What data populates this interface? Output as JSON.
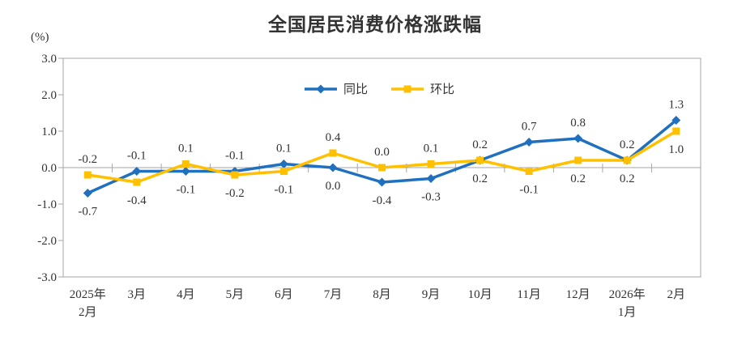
{
  "chart": {
    "title": "全国居民消费价格涨跌幅",
    "unit_label": "(%)"
  },
  "style": {
    "axis_color": "#a6a6a6",
    "text_color": "#333333",
    "background": "#ffffff"
  },
  "chart_data": {
    "type": "line",
    "title": "全国居民消费价格涨跌幅",
    "ylabel": "(%)",
    "xlabel": "",
    "ylim": [
      -3.0,
      3.0
    ],
    "y_tick_labels": [
      "3.0",
      "2.0",
      "1.0",
      "0.0",
      "-1.0",
      "-2.0",
      "-3.0"
    ],
    "y_tick_values": [
      3,
      2,
      1,
      0,
      -1,
      -2,
      -3
    ],
    "grid": false,
    "legend_position": "top-center-inside",
    "categories": [
      [
        "2025年",
        "2月"
      ],
      [
        "3月"
      ],
      [
        "4月"
      ],
      [
        "5月"
      ],
      [
        "6月"
      ],
      [
        "7月"
      ],
      [
        "8月"
      ],
      [
        "9月"
      ],
      [
        "10月"
      ],
      [
        "11月"
      ],
      [
        "12月"
      ],
      [
        "2026年",
        "1月"
      ],
      [
        "2月"
      ]
    ],
    "series": [
      {
        "name": "同比",
        "color": "#2070c0",
        "marker": "diamond",
        "values": [
          -0.7,
          -0.1,
          -0.1,
          -0.1,
          0.1,
          0.0,
          -0.4,
          -0.3,
          0.2,
          0.7,
          0.8,
          0.2,
          1.3
        ]
      },
      {
        "name": "环比",
        "color": "#ffc000",
        "marker": "square",
        "values": [
          -0.2,
          -0.4,
          0.1,
          -0.2,
          -0.1,
          0.4,
          0.0,
          0.1,
          0.2,
          -0.1,
          0.2,
          0.2,
          1.0
        ]
      }
    ]
  }
}
